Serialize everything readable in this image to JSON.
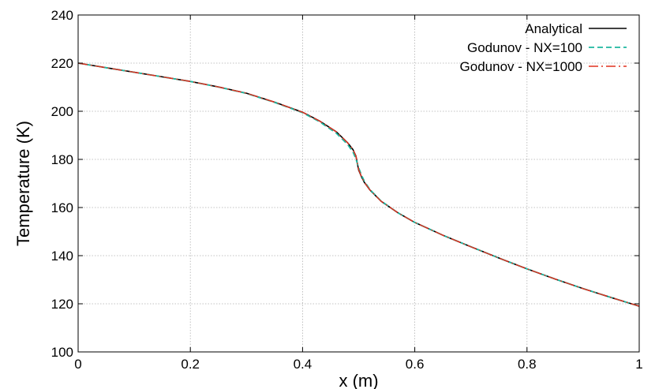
{
  "chart_data": {
    "type": "line",
    "xlabel": "x (m)",
    "ylabel": "Temperature (K)",
    "xlim": [
      0,
      1
    ],
    "ylim": [
      100,
      240
    ],
    "x_ticks": [
      0,
      0.2,
      0.4,
      0.6,
      0.8,
      1
    ],
    "x_tick_labels": [
      "0",
      "0.2",
      "0.4",
      "0.6",
      "0.8",
      "1"
    ],
    "y_ticks": [
      100,
      120,
      140,
      160,
      180,
      200,
      220,
      240
    ],
    "y_tick_labels": [
      "100",
      "120",
      "140",
      "160",
      "180",
      "200",
      "220",
      "240"
    ],
    "grid": true,
    "legend_position": "top-right",
    "x": [
      0,
      0.05,
      0.1,
      0.15,
      0.2,
      0.25,
      0.3,
      0.35,
      0.4,
      0.43,
      0.46,
      0.48,
      0.49,
      0.495,
      0.5,
      0.505,
      0.51,
      0.52,
      0.54,
      0.57,
      0.6,
      0.65,
      0.7,
      0.75,
      0.8,
      0.85,
      0.9,
      0.95,
      1.0
    ],
    "series": [
      {
        "name": "Analytical",
        "color": "#000000",
        "dash": "solid",
        "values": [
          220,
          218.1,
          216.2,
          214.3,
          212.4,
          210.1,
          207.5,
          203.8,
          199.6,
          196.0,
          191.5,
          187.0,
          184.0,
          181.5,
          175.5,
          172.8,
          170.5,
          167.3,
          162.6,
          157.8,
          153.8,
          148.5,
          143.7,
          139.0,
          134.5,
          130.3,
          126.3,
          122.6,
          119.0
        ]
      },
      {
        "name": "Godunov - NX=100",
        "color": "#1fb8a0",
        "dash": "dashed",
        "values": [
          220,
          218.1,
          216.2,
          214.3,
          212.4,
          210.1,
          207.4,
          203.7,
          199.4,
          195.7,
          190.9,
          186.3,
          183.0,
          180.3,
          176.5,
          173.5,
          171.0,
          167.5,
          162.7,
          157.8,
          153.8,
          148.5,
          143.7,
          139.0,
          134.5,
          130.3,
          126.3,
          122.6,
          119.0
        ]
      },
      {
        "name": "Godunov - NX=1000",
        "color": "#e0301e",
        "dash": "dashdot",
        "values": [
          220,
          218.1,
          216.2,
          214.3,
          212.4,
          210.1,
          207.5,
          203.8,
          199.6,
          196.0,
          191.5,
          187.0,
          184.0,
          181.5,
          175.7,
          172.9,
          170.5,
          167.3,
          162.6,
          157.8,
          153.8,
          148.5,
          143.7,
          139.0,
          134.5,
          130.3,
          126.3,
          122.6,
          119.0
        ]
      }
    ]
  }
}
